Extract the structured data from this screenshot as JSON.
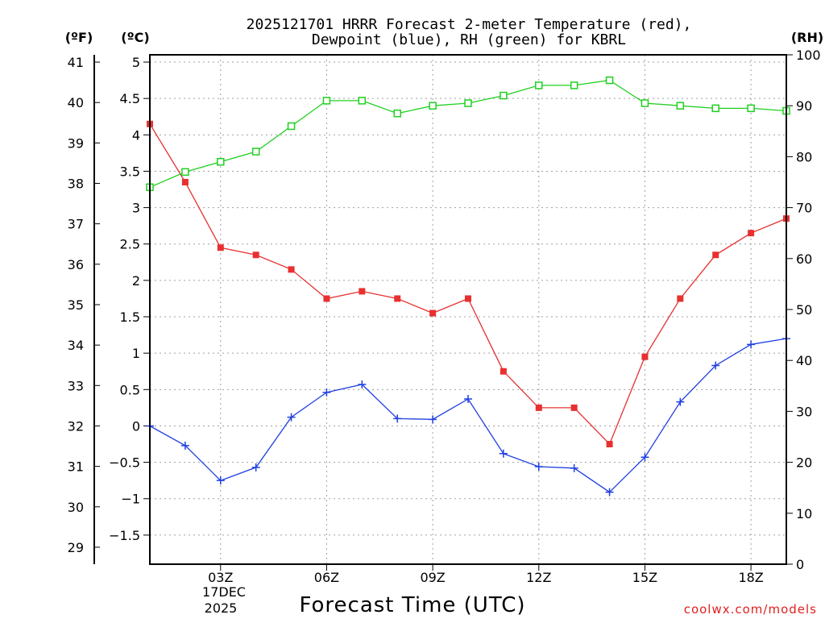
{
  "chart_data": {
    "type": "line",
    "title_line1": "2025121701 HRRR Forecast 2-meter Temperature (red),",
    "title_line2": "Dewpoint (blue), RH (green) for KBRL",
    "xlabel": "Forecast Time (UTC)",
    "left_outer_unit": "(ºF)",
    "left_inner_unit": "(ºC)",
    "right_unit": "(RH)",
    "credit": "coolwx.com/models",
    "x_hours": [
      1,
      2,
      3,
      4,
      5,
      6,
      7,
      8,
      9,
      10,
      11,
      12,
      13,
      14,
      15,
      16,
      17,
      18,
      19
    ],
    "x_ticks": [
      {
        "hour": 3,
        "label": "03Z"
      },
      {
        "hour": 6,
        "label": "06Z"
      },
      {
        "hour": 9,
        "label": "09Z"
      },
      {
        "hour": 12,
        "label": "12Z"
      },
      {
        "hour": 15,
        "label": "15Z"
      },
      {
        "hour": 18,
        "label": "18Z"
      }
    ],
    "date_label_line1": "17DEC",
    "date_label_line2": "2025",
    "xlim": [
      1,
      19
    ],
    "celsius_ylim": [
      -1.9,
      5.1
    ],
    "celsius_ticks": [
      -1.5,
      -1,
      -0.5,
      0,
      0.5,
      1,
      1.5,
      2,
      2.5,
      3,
      3.5,
      4,
      4.5,
      5
    ],
    "celsius_tick_labels": [
      "−1.5",
      "−1",
      "−0.5",
      "0",
      "0.5",
      "1",
      "1.5",
      "2",
      "2.5",
      "3",
      "3.5",
      "4",
      "4.5",
      "5"
    ],
    "fahrenheit_ticks": [
      29,
      30,
      31,
      32,
      33,
      34,
      35,
      36,
      37,
      38,
      39,
      40,
      41
    ],
    "rh_ylim": [
      0,
      100
    ],
    "rh_ticks": [
      0,
      10,
      20,
      30,
      40,
      50,
      60,
      70,
      80,
      90,
      100
    ],
    "series": [
      {
        "name": "Temperature",
        "unit": "C",
        "color": "#e83030",
        "marker": "filled-square",
        "values": [
          4.15,
          3.35,
          2.45,
          2.35,
          2.15,
          1.75,
          1.85,
          1.75,
          1.55,
          1.75,
          0.75,
          0.25,
          0.25,
          -0.25,
          0.95,
          1.75,
          2.35,
          2.65,
          2.85
        ]
      },
      {
        "name": "Dewpoint",
        "unit": "C",
        "color": "#2040e0",
        "marker": "plus",
        "values": [
          0.0,
          -0.27,
          -0.75,
          -0.57,
          0.12,
          0.46,
          0.57,
          0.1,
          0.09,
          0.37,
          -0.38,
          -0.56,
          -0.58,
          -0.91,
          -0.43,
          0.33,
          0.83,
          1.12,
          1.2
        ]
      },
      {
        "name": "RH",
        "unit": "%",
        "color": "#20d020",
        "marker": "open-square",
        "values": [
          74,
          77,
          79,
          81,
          86,
          91,
          91,
          88.5,
          90,
          90.5,
          92,
          94,
          94,
          95,
          90.5,
          90,
          89.5,
          89.5,
          89
        ]
      }
    ]
  }
}
